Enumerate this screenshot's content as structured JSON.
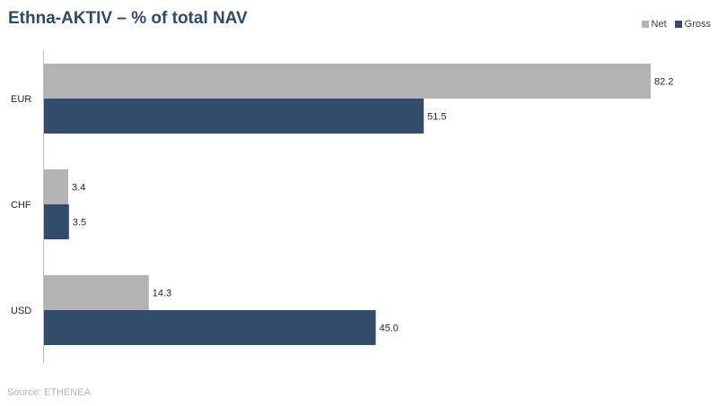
{
  "title": "Ethna-AKTIV – % of total NAV",
  "source": "Source: ETHENEA",
  "chart_data": {
    "type": "bar",
    "orientation": "horizontal",
    "categories": [
      "EUR",
      "CHF",
      "USD"
    ],
    "series": [
      {
        "name": "Net",
        "color": "#b3b3b3",
        "values": [
          82.2,
          3.4,
          14.3
        ]
      },
      {
        "name": "Gross",
        "color": "#314d6b",
        "values": [
          51.5,
          3.5,
          45.0
        ]
      }
    ],
    "xlim": [
      0,
      90
    ],
    "grid": false,
    "legend_position": "top-right"
  }
}
